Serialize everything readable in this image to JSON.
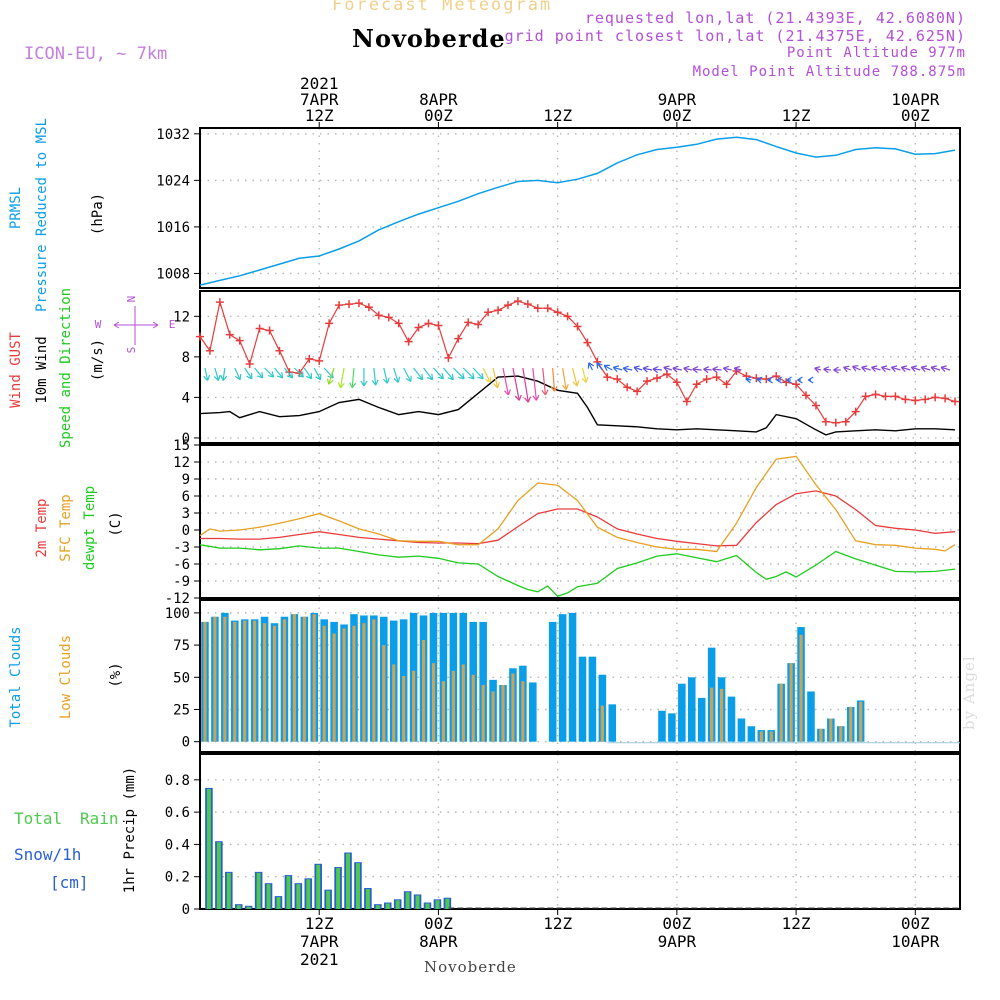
{
  "header": {
    "title": "Forecast Meteogram",
    "location": "Novoberde",
    "model": "ICON-EU, ~ 7km",
    "requested": "requested lon,lat (21.4393E, 42.6080N)",
    "grid_point": "grid point closest lon,lat (21.4375E, 42.625N)",
    "point_altitude": "Point Altitude 977m",
    "model_altitude": "Model Point Altitude 788.875m",
    "footer_location": "Novoberde",
    "watermark": "by Angel"
  },
  "colors": {
    "pressure": "#0a9ee8",
    "gust": "#e83c3c",
    "wind": "#000000",
    "temp2m": "#e83c3c",
    "sfc": "#e8a023",
    "dewpt": "#1ecb1e",
    "total_clouds": "#0a9ee8",
    "low_clouds": "#c9a35a",
    "rain": "#2a5fd0",
    "snow": "#4ec94e",
    "compass": "#b44fd8",
    "header": "#b44fd8"
  },
  "axis": {
    "top_labels": [
      {
        "x": 12,
        "lines": [
          "2021",
          "7APR",
          "12Z"
        ]
      },
      {
        "x": 24,
        "lines": [
          "8APR",
          "00Z"
        ]
      },
      {
        "x": 36,
        "lines": [
          "12Z"
        ]
      },
      {
        "x": 48,
        "lines": [
          "9APR",
          "00Z"
        ]
      },
      {
        "x": 60,
        "lines": [
          "12Z"
        ]
      },
      {
        "x": 72,
        "lines": [
          "10APR",
          "00Z"
        ]
      }
    ],
    "bottom_labels": [
      {
        "x": 12,
        "lines": [
          "12Z",
          "7APR",
          "2021"
        ]
      },
      {
        "x": 24,
        "lines": [
          "00Z",
          "8APR"
        ]
      },
      {
        "x": 36,
        "lines": [
          "12Z"
        ]
      },
      {
        "x": 48,
        "lines": [
          "00Z",
          "9APR"
        ]
      },
      {
        "x": 60,
        "lines": [
          "12Z"
        ]
      },
      {
        "x": 72,
        "lines": [
          "00Z",
          "10APR"
        ]
      }
    ]
  },
  "panel_labels": {
    "pressure": {
      "a": "PRMSL",
      "b": "Pressure Reduced to MSL",
      "unit": "(hPa)"
    },
    "wind": {
      "a": "Wind GUST",
      "b": "10m Wind",
      "c": "Speed and Direction",
      "unit": "(m/s)"
    },
    "compass": {
      "n": "N",
      "s": "S",
      "w": "W",
      "e": "E"
    },
    "temp": {
      "a": "2m Temp",
      "b": "SFC Temp",
      "c": "dewpt Temp",
      "unit": "(C)"
    },
    "clouds": {
      "a": "Total Clouds",
      "b": "Low Clouds",
      "unit": "(%)"
    },
    "precip": {
      "a": "Total",
      "b": "Rain",
      "c": "Snow/1h",
      "d": "[cm]",
      "unit": "1hr Precip (mm)"
    }
  },
  "chart_data": [
    {
      "type": "line",
      "title": "Pressure Reduced to MSL",
      "ylabel": "(hPa)",
      "x_unit": "hours since 7APR2021 00Z",
      "yticks": [
        1008,
        1016,
        1024,
        1032
      ],
      "ylim": [
        1005.5,
        1033
      ],
      "x": [
        0,
        2,
        4,
        6,
        8,
        10,
        12,
        14,
        16,
        18,
        20,
        22,
        24,
        26,
        28,
        30,
        32,
        34,
        36,
        38,
        40,
        42,
        44,
        46,
        48,
        50,
        52,
        54,
        56,
        58,
        60,
        62,
        64,
        66,
        68,
        70,
        72,
        74,
        76
      ],
      "values": [
        1006,
        1006.8,
        1007.6,
        1008.6,
        1009.6,
        1010.6,
        1011,
        1012.2,
        1013.6,
        1015.5,
        1016.9,
        1018.2,
        1019.3,
        1020.4,
        1021.7,
        1022.8,
        1023.8,
        1024,
        1023.6,
        1024.2,
        1025.2,
        1027,
        1028.4,
        1029.3,
        1029.7,
        1030.2,
        1031.1,
        1031.4,
        1031,
        1029.8,
        1028.7,
        1028,
        1028.3,
        1029.3,
        1029.6,
        1029.4,
        1028.5,
        1028.6,
        1029.2
      ]
    },
    {
      "type": "line",
      "title": "Wind GUST / 10m Wind Speed and Direction",
      "ylabel": "(m/s)",
      "yticks": [
        0,
        4,
        8,
        12
      ],
      "ylim": [
        -0.5,
        14.5
      ],
      "series": [
        {
          "name": "Wind GUST",
          "marker": "+",
          "x": [
            0,
            1,
            2,
            3,
            4,
            5,
            6,
            7,
            8,
            9,
            10,
            11,
            12,
            13,
            14,
            15,
            16,
            17,
            18,
            19,
            20,
            21,
            22,
            23,
            24,
            25,
            26,
            27,
            28,
            29,
            30,
            31,
            32,
            33,
            34,
            35,
            36,
            37,
            38,
            39,
            40,
            41,
            42,
            43,
            44,
            45,
            46,
            47,
            48,
            49,
            50,
            51,
            52,
            53,
            54,
            55,
            56,
            57,
            58,
            59,
            60,
            61,
            62,
            63,
            64,
            65,
            66,
            67,
            68,
            69,
            70,
            71,
            72,
            73,
            74,
            75,
            76
          ],
          "values": [
            10,
            8.6,
            13.4,
            10.2,
            9.6,
            7.3,
            10.8,
            10.6,
            8.6,
            6.5,
            6.4,
            7.8,
            7.6,
            11.3,
            13.1,
            13.2,
            13.3,
            12.9,
            12.1,
            11.9,
            11.3,
            9.5,
            10.9,
            11.3,
            11.1,
            7.9,
            9.8,
            11.4,
            11.2,
            12.4,
            12.6,
            13.1,
            13.5,
            13.2,
            12.8,
            12.8,
            12.4,
            12,
            11,
            9.4,
            7.5,
            6,
            5.8,
            5,
            4.6,
            5.6,
            5.9,
            6.3,
            5.5,
            3.6,
            5.3,
            5.8,
            6,
            5.3,
            6.6,
            6.1,
            5.9,
            5.8,
            6.1,
            5.5,
            5.3,
            4.2,
            3.2,
            1.6,
            1.5,
            1.6,
            2.6,
            4.1,
            4.3,
            4.1,
            4.1,
            3.8,
            3.7,
            3.8,
            4,
            3.9,
            3.6
          ]
        },
        {
          "name": "10m Wind",
          "x": [
            0,
            2,
            3,
            4,
            6,
            8,
            10,
            12,
            14,
            16,
            18,
            20,
            22,
            24,
            26,
            28,
            30,
            32,
            34,
            36,
            38,
            39,
            40,
            42,
            44,
            46,
            48,
            50,
            52,
            54,
            56,
            57,
            58,
            60,
            62,
            63,
            64,
            66,
            68,
            70,
            72,
            74,
            76
          ],
          "values": [
            2.4,
            2.5,
            2.6,
            2,
            2.6,
            2.1,
            2.2,
            2.6,
            3.5,
            3.8,
            3,
            2.3,
            2.6,
            2.3,
            2.8,
            4.4,
            6,
            6.1,
            5.6,
            4.7,
            4.4,
            3,
            1.3,
            1.2,
            1.1,
            0.9,
            0.8,
            0.9,
            0.8,
            0.7,
            0.6,
            1,
            2.3,
            1.9,
            0.8,
            0.3,
            0.6,
            0.7,
            0.8,
            0.7,
            0.9,
            0.9,
            0.8
          ]
        }
      ]
    },
    {
      "type": "line",
      "title": "2m Temp / SFC Temp / dewpt Temp",
      "ylabel": "(C)",
      "yticks": [
        -12,
        -9,
        -6,
        -3,
        0,
        3,
        6,
        9,
        12,
        15
      ],
      "ylim": [
        -12,
        15
      ],
      "series": [
        {
          "name": "2m Temp",
          "x": [
            0,
            2,
            4,
            6,
            8,
            10,
            12,
            14,
            16,
            18,
            20,
            22,
            24,
            26,
            28,
            30,
            32,
            34,
            36,
            38,
            40,
            42,
            44,
            46,
            48,
            50,
            52,
            54,
            56,
            58,
            60,
            62,
            64,
            66,
            68,
            70,
            72,
            74,
            76
          ],
          "values": [
            -1.5,
            -1.5,
            -1.6,
            -1.6,
            -1.3,
            -0.8,
            -0.3,
            -0.8,
            -1.3,
            -1.6,
            -1.9,
            -2.2,
            -2.3,
            -2.3,
            -2.4,
            -1.8,
            0.6,
            2.9,
            3.7,
            3.7,
            2.3,
            0.2,
            -0.7,
            -1.5,
            -2,
            -2.4,
            -2.8,
            -2.7,
            1.3,
            4.5,
            6.4,
            6.9,
            6,
            3.6,
            0.8,
            0.3,
            0,
            -0.6,
            -0.3
          ]
        },
        {
          "name": "SFC Temp",
          "x": [
            0,
            1,
            2,
            4,
            6,
            8,
            10,
            12,
            14,
            16,
            18,
            20,
            22,
            24,
            26,
            28,
            30,
            32,
            34,
            36,
            38,
            40,
            42,
            44,
            46,
            48,
            50,
            52,
            54,
            56,
            58,
            60,
            62,
            64,
            66,
            68,
            70,
            72,
            74,
            75,
            76
          ],
          "values": [
            -1,
            0.2,
            -0.2,
            0,
            0.5,
            1.2,
            2,
            2.9,
            1.6,
            0.2,
            -0.7,
            -1.9,
            -2,
            -2,
            -2.6,
            -2.6,
            0.2,
            5.2,
            8.3,
            7.9,
            5.2,
            0.5,
            -1.3,
            -2.2,
            -3,
            -3.4,
            -3.4,
            -3.8,
            1.2,
            7.5,
            12.5,
            13,
            8,
            3.6,
            -1.9,
            -2.6,
            -2.7,
            -3.2,
            -3.4,
            -3.7,
            -2.6
          ]
        },
        {
          "name": "dewpt Temp",
          "x": [
            0,
            2,
            4,
            6,
            8,
            10,
            12,
            14,
            16,
            18,
            20,
            22,
            24,
            26,
            28,
            30,
            32,
            33,
            34,
            35,
            36,
            37,
            38,
            40,
            42,
            44,
            46,
            48,
            50,
            52,
            54,
            56,
            57,
            58,
            59,
            60,
            62,
            64,
            66,
            68,
            70,
            72,
            74,
            76
          ],
          "values": [
            -2.6,
            -3.2,
            -3.2,
            -3.5,
            -3.3,
            -2.8,
            -3.2,
            -3.2,
            -3.8,
            -4.4,
            -4.8,
            -4.6,
            -5,
            -5.8,
            -6,
            -8.2,
            -9.8,
            -10.5,
            -10.9,
            -9.9,
            -11.7,
            -11.1,
            -10,
            -9.4,
            -6.8,
            -5.8,
            -4.6,
            -4.2,
            -4.9,
            -5.6,
            -4.5,
            -7.5,
            -8.7,
            -8.2,
            -7.4,
            -8.3,
            -6.2,
            -3.8,
            -5.1,
            -6.2,
            -7.3,
            -7.4,
            -7.3,
            -6.9
          ]
        }
      ]
    },
    {
      "type": "bar",
      "title": "Total Clouds / Low Clouds",
      "ylabel": "(%)",
      "yticks": [
        0,
        25,
        50,
        75,
        100
      ],
      "ylim": [
        0,
        100
      ],
      "x": [
        0,
        1,
        2,
        3,
        4,
        5,
        6,
        7,
        8,
        9,
        10,
        11,
        12,
        13,
        14,
        15,
        16,
        17,
        18,
        19,
        20,
        21,
        22,
        23,
        24,
        25,
        26,
        27,
        28,
        29,
        30,
        31,
        32,
        33,
        34,
        35,
        36,
        37,
        38,
        39,
        40,
        41,
        42,
        43,
        44,
        45,
        46,
        47,
        48,
        49,
        50,
        51,
        52,
        53,
        54,
        55,
        56,
        57,
        58,
        59,
        60,
        61,
        62,
        63,
        64,
        65,
        66,
        67,
        68,
        69,
        70,
        71,
        72,
        73,
        74,
        75,
        76
      ],
      "series": [
        {
          "name": "Total Clouds",
          "values": [
            93,
            97,
            100,
            94,
            95,
            95,
            97,
            92,
            97,
            99,
            97,
            100,
            95,
            93,
            91,
            99,
            98,
            98,
            97,
            94,
            95,
            100,
            98,
            100,
            100,
            100,
            100,
            93,
            93,
            48,
            44,
            57,
            59,
            46,
            0,
            93,
            99,
            100,
            66,
            66,
            52,
            29,
            0,
            0,
            0,
            0,
            24,
            22,
            45,
            50,
            34,
            73,
            50,
            35,
            18,
            12,
            9,
            9,
            45,
            61,
            89,
            39,
            10,
            18,
            12,
            27,
            32,
            0,
            0,
            0,
            0,
            0,
            0,
            0,
            0,
            0,
            0
          ]
        },
        {
          "name": "Low Clouds",
          "values": [
            93,
            97,
            97,
            93,
            94,
            94,
            92,
            90,
            95,
            99,
            97,
            99,
            90,
            84,
            88,
            90,
            92,
            95,
            75,
            60,
            51,
            55,
            79,
            61,
            47,
            55,
            60,
            52,
            44,
            39,
            44,
            53,
            47,
            0,
            0,
            0,
            0,
            0,
            0,
            0,
            28,
            0,
            0,
            0,
            0,
            0,
            0,
            0,
            0,
            0,
            0,
            42,
            41,
            0,
            0,
            0,
            8,
            8,
            45,
            61,
            83,
            0,
            10,
            18,
            12,
            27,
            31,
            0,
            0,
            0,
            0,
            0,
            0,
            0,
            0,
            0,
            0
          ]
        }
      ]
    },
    {
      "type": "bar",
      "title": "1hr Precip",
      "ylabel": "1hr Precip (mm)",
      "yticks": [
        0,
        0.2,
        0.4,
        0.6,
        0.8
      ],
      "ylim": [
        0,
        0.96
      ],
      "x": [
        0,
        1,
        2,
        3,
        4,
        5,
        6,
        7,
        8,
        9,
        10,
        11,
        12,
        13,
        14,
        15,
        16,
        17,
        18,
        19,
        20,
        21,
        22,
        23,
        24
      ],
      "series": [
        {
          "name": "Total",
          "values": [
            0.75,
            0.42,
            0.23,
            0.03,
            0.02,
            0.23,
            0.16,
            0.08,
            0.21,
            0.16,
            0.19,
            0.28,
            0.12,
            0.26,
            0.35,
            0.29,
            0.13,
            0.03,
            0.04,
            0.06,
            0.11,
            0.09,
            0.04,
            0.06,
            0.07
          ]
        }
      ]
    }
  ]
}
